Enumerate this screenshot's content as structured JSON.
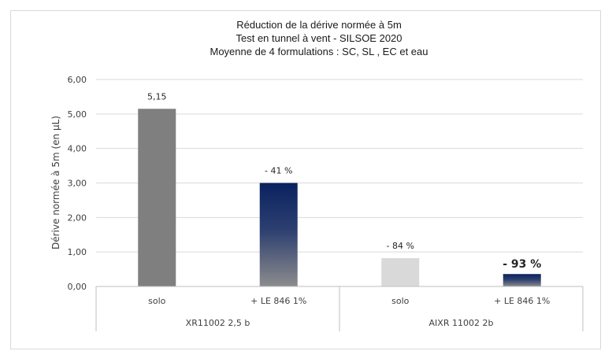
{
  "chart_data": {
    "type": "bar",
    "title_lines": [
      "Réduction de la dérive normée à 5m",
      "Test en tunnel à vent - SILSOE 2020",
      "Moyenne de 4 formulations : SC, SL , EC et eau"
    ],
    "ylabel": "Dérive normée à 5m (en µL)",
    "xlabel": "",
    "ylim": [
      0,
      6
    ],
    "yticks": [
      "0,00",
      "1,00",
      "2,00",
      "3,00",
      "4,00",
      "5,00",
      "6,00"
    ],
    "grid": true,
    "groups": [
      {
        "label": "XR11002 2,5 b",
        "categories": [
          "solo",
          "+ LE 846 1%"
        ]
      },
      {
        "label": "AIXR 11002 2b",
        "categories": [
          "solo",
          "+ LE 846 1%"
        ]
      }
    ],
    "bars": [
      {
        "category": "solo",
        "group": "XR11002 2,5 b",
        "value": 5.15,
        "label": "5,15",
        "style": "gray"
      },
      {
        "category": "+ LE 846 1%",
        "group": "XR11002 2,5 b",
        "value": 3.0,
        "label": "- 41 %",
        "style": "navy-gradient"
      },
      {
        "category": "solo",
        "group": "AIXR 11002 2b",
        "value": 0.82,
        "label": "- 84 %",
        "style": "lightgray"
      },
      {
        "category": "+ LE 846 1%",
        "group": "AIXR 11002 2b",
        "value": 0.36,
        "label": "- 93 %",
        "style": "navy-gradient",
        "emphasis": true
      }
    ],
    "colors": {
      "gray": "#7f7f7f",
      "lightgray": "#d9d9d9",
      "navy": "#0a2260",
      "navy_fade": "#8c8c8c",
      "grid": "#d9d9d9",
      "axis": "#bfbfbf"
    }
  }
}
